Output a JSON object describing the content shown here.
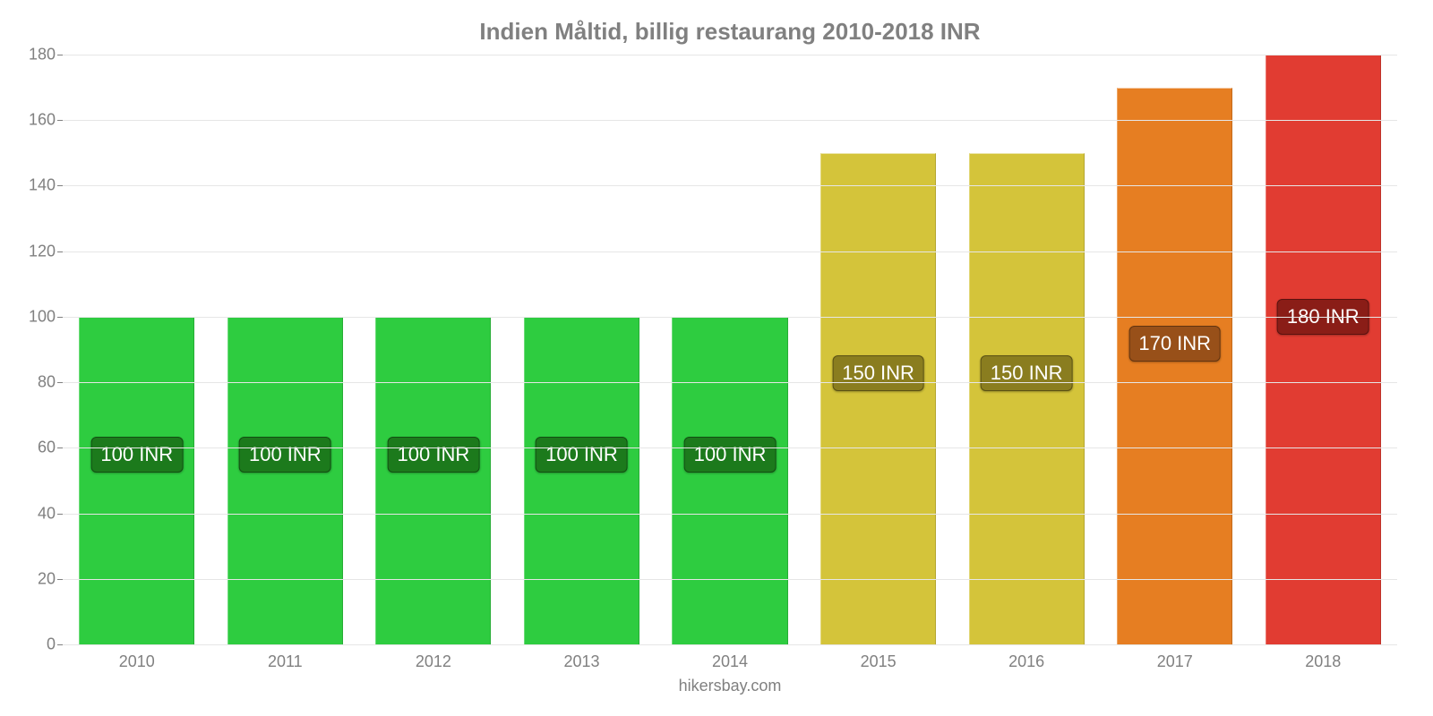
{
  "chart": {
    "type": "bar",
    "title": "Indien Måltid, billig restaurang 2010-2018 INR",
    "title_color": "#808080",
    "title_fontsize": 26,
    "background_color": "#ffffff",
    "grid_color": "#e6e6e6",
    "axis_text_color": "#808080",
    "axis_fontsize": 18,
    "footer": "hikersbay.com",
    "ymin": 0,
    "ymax": 180,
    "ytick_step": 20,
    "yticks": [
      0,
      20,
      40,
      60,
      80,
      100,
      120,
      140,
      160,
      180
    ],
    "bar_width_ratio": 0.78,
    "value_suffix": " INR",
    "value_label_fontsize": 22,
    "value_label_text_color": "#ffffff",
    "value_label_border_radius": 6,
    "categories": [
      "2010",
      "2011",
      "2012",
      "2013",
      "2014",
      "2015",
      "2016",
      "2017",
      "2018"
    ],
    "values": [
      100,
      100,
      100,
      100,
      100,
      150,
      150,
      170,
      180
    ],
    "bar_colors": [
      "#2ecc40",
      "#2ecc40",
      "#2ecc40",
      "#2ecc40",
      "#2ecc40",
      "#d4c43a",
      "#d4c43a",
      "#e67e22",
      "#e13c32"
    ],
    "label_bg_colors": [
      "#1c7a1c",
      "#1c7a1c",
      "#1c7a1c",
      "#1c7a1c",
      "#1c7a1c",
      "#8a7d1f",
      "#8a7d1f",
      "#985019",
      "#8a1d17"
    ],
    "label_y_positions": [
      58,
      58,
      58,
      58,
      58,
      83,
      83,
      92,
      100
    ]
  }
}
